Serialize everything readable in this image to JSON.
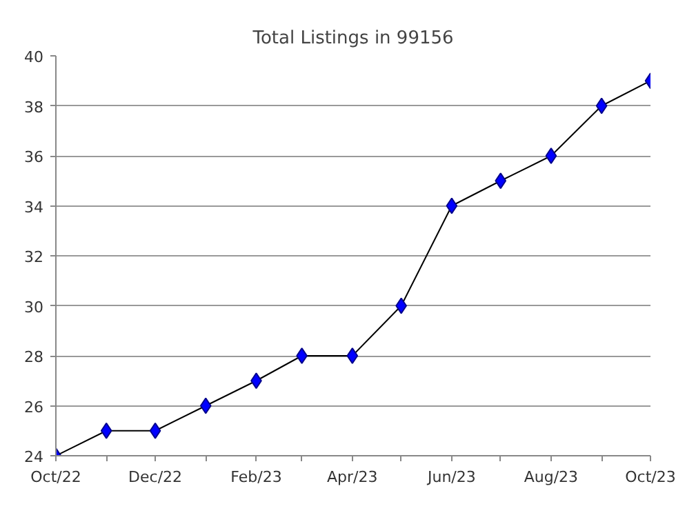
{
  "chart_data": {
    "type": "line",
    "title": "Total Listings in 99156",
    "x": [
      "2022-10",
      "2022-11",
      "2022-12",
      "2023-01",
      "2023-02",
      "2023-03",
      "2023-04",
      "2023-05",
      "2023-06",
      "2023-07",
      "2023-08",
      "2023-09",
      "2023-10"
    ],
    "series": [
      {
        "color": "#0000ff",
        "values": [
          24,
          25,
          25,
          26,
          27,
          28,
          28,
          30,
          34,
          35,
          36,
          38,
          39
        ]
      }
    ],
    "xlim": [
      "2022-10",
      "2023-10"
    ],
    "xticks": [
      {
        "value": "2022-10",
        "label": "Oct/22"
      },
      {
        "value": "2022-11",
        "label": null
      },
      {
        "value": "2022-12",
        "label": "Dec/22"
      },
      {
        "value": "2023-01",
        "label": null
      },
      {
        "value": "2023-02",
        "label": "Feb/23"
      },
      {
        "value": "2023-03",
        "label": null
      },
      {
        "value": "2023-04",
        "label": "Apr/23"
      },
      {
        "value": "2023-05",
        "label": null
      },
      {
        "value": "2023-06",
        "label": "Jun/23"
      },
      {
        "value": "2023-07",
        "label": null
      },
      {
        "value": "2023-08",
        "label": "Aug/23"
      },
      {
        "value": "2023-09",
        "label": null
      },
      {
        "value": "2023-10",
        "label": "Oct/23"
      }
    ],
    "ylim": [
      24,
      40
    ],
    "yticks": [
      24,
      26,
      28,
      30,
      32,
      34,
      36,
      38,
      40
    ],
    "grid": "y",
    "marker": "diamond",
    "line_style": "solid"
  }
}
